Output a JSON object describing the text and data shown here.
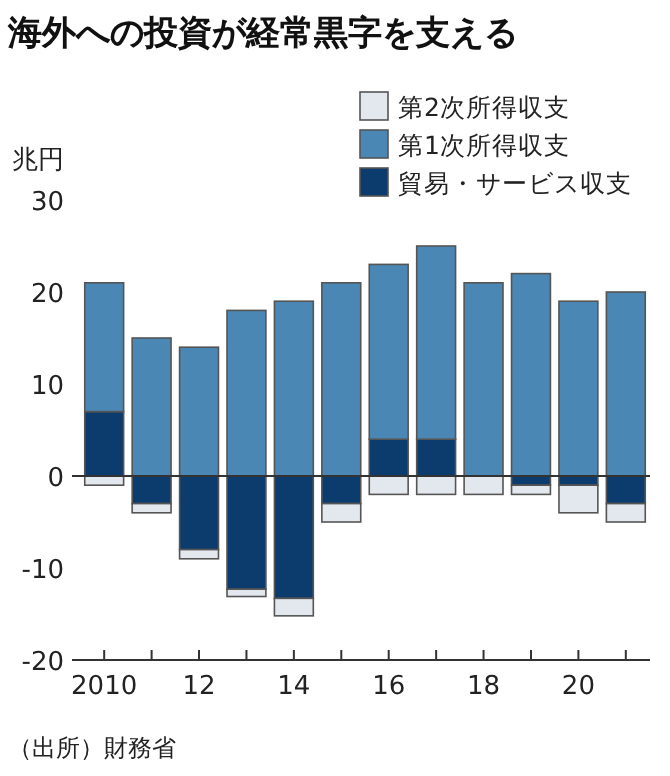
{
  "chart_data": {
    "type": "bar",
    "title": "海外への投資が経常黒字を支える",
    "ylabel": "兆円",
    "stacked": true,
    "categories": [
      "2010",
      null,
      "12",
      null,
      "14",
      null,
      "16",
      null,
      "18",
      null,
      "20",
      null
    ],
    "series": [
      {
        "name": "貿易・サービス収支",
        "color": "#0c3b6e",
        "values": [
          7,
          -3,
          -8,
          -12.3,
          -13.3,
          -3,
          4,
          4,
          0,
          -1,
          -1,
          -3
        ]
      },
      {
        "name": "第1次所得収支",
        "color": "#4a87b5",
        "values": [
          14,
          15,
          14,
          18,
          19,
          21,
          19,
          21,
          21,
          22,
          19,
          20
        ]
      },
      {
        "name": "第2次所得収支",
        "color": "#e3e7ee",
        "values": [
          -1,
          -1,
          -1,
          -0.8,
          -1.9,
          -2,
          -2,
          -2,
          -2,
          -1,
          -3,
          -2
        ]
      }
    ],
    "ylim": [
      -20,
      30
    ],
    "yticks": [
      -20,
      -10,
      0,
      10,
      20,
      30
    ],
    "legend": "top right",
    "annotations": [
      "（出所）財務省"
    ]
  }
}
